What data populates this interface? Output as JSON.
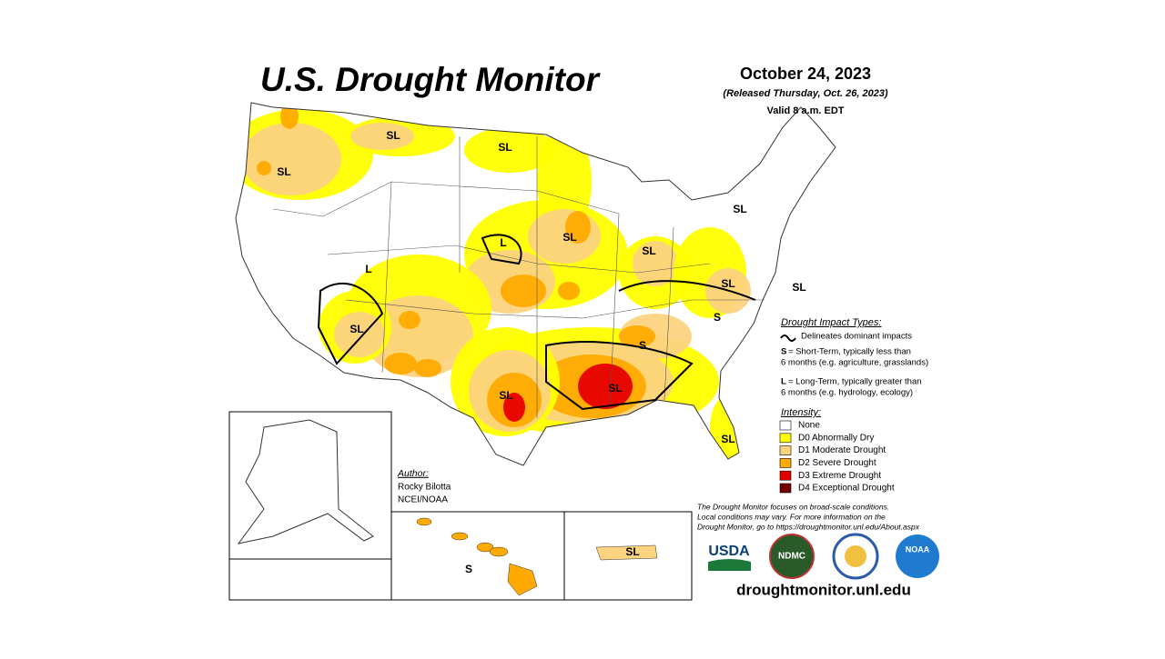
{
  "header": {
    "title": "U.S. Drought Monitor",
    "date": "October 24, 2023",
    "released": "(Released Thursday, Oct. 26, 2023)",
    "valid": "Valid 8 a.m. EDT"
  },
  "map_labels": [
    "SL",
    "SL",
    "SL",
    "SL",
    "L",
    "SL",
    "SL",
    "L",
    "SL",
    "SL",
    "S",
    "SL",
    "S",
    "SL",
    "SL",
    "SL",
    "S",
    "SL"
  ],
  "impact": {
    "heading": "Drought Impact Types:",
    "line_note": "Delineates dominant impacts",
    "short": {
      "key": "S",
      "lines": [
        "= Short-Term, typically less than",
        "6 months (e.g. agriculture, grasslands)"
      ]
    },
    "long": {
      "key": "L",
      "lines": [
        "= Long-Term, typically greater than",
        "6 months (e.g. hydrology, ecology)"
      ]
    }
  },
  "intensity": {
    "heading": "Intensity:",
    "items": [
      {
        "label": "None",
        "color": "#ffffff"
      },
      {
        "label": "D0 Abnormally Dry",
        "color": "#ffff00"
      },
      {
        "label": "D1 Moderate Drought",
        "color": "#fcd37f"
      },
      {
        "label": "D2 Severe Drought",
        "color": "#ffaa00"
      },
      {
        "label": "D3 Extreme Drought",
        "color": "#e60000"
      },
      {
        "label": "D4 Exceptional Drought",
        "color": "#730000"
      }
    ]
  },
  "author": {
    "heading": "Author:",
    "name": "Rocky Bilotta",
    "org": "NCEI/NOAA"
  },
  "note": [
    "The Drought Monitor focuses on broad-scale conditions.",
    "Local conditions may vary. For more information on the",
    "Drought Monitor, go to https://droughtmonitor.unl.edu/About.aspx"
  ],
  "logos": [
    "USDA",
    "NDMC",
    "NOAA"
  ],
  "url": "droughtmonitor.unl.edu"
}
